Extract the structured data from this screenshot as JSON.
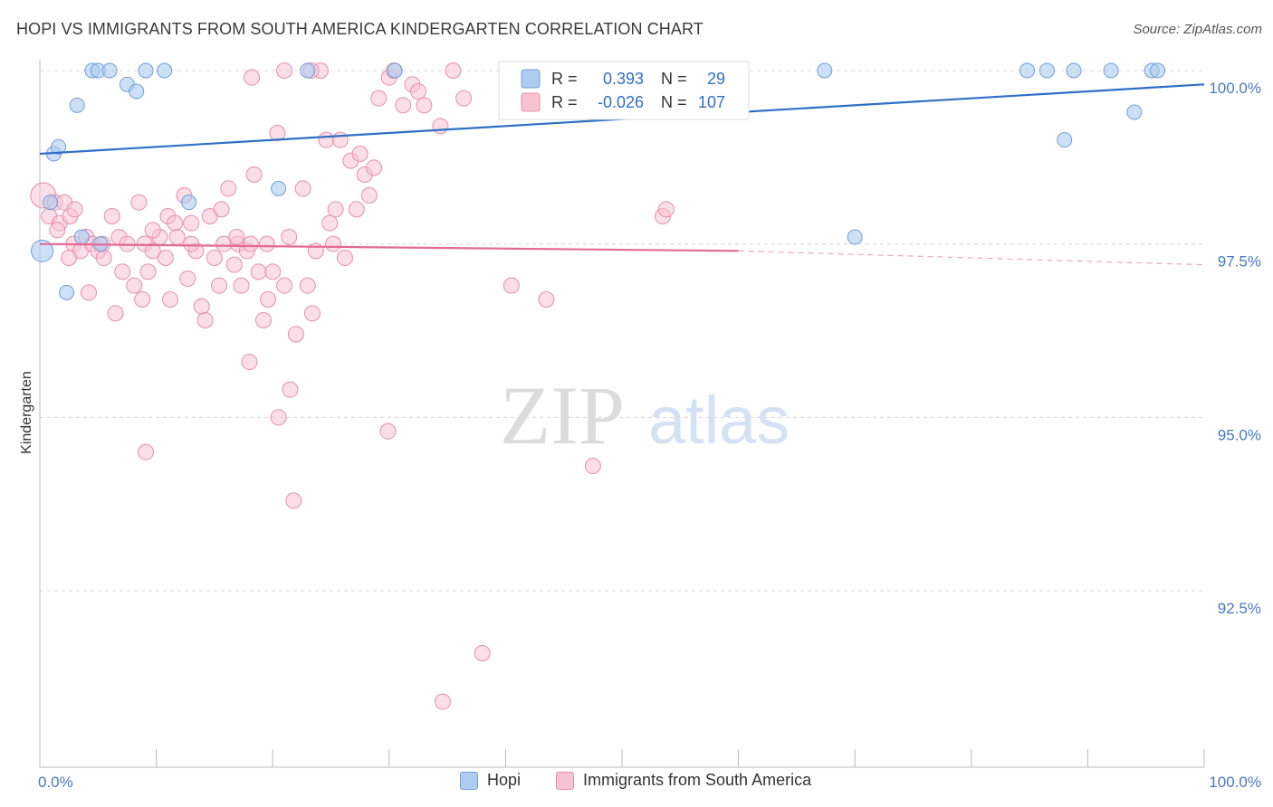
{
  "title": "HOPI VS IMMIGRANTS FROM SOUTH AMERICA KINDERGARTEN CORRELATION CHART",
  "source": "Source: ZipAtlas.com",
  "watermark": {
    "zip": "ZIP",
    "atlas": "atlas"
  },
  "colors": {
    "hopi_fill": "#aecbf0",
    "hopi_stroke": "#6f9fd8",
    "hopi_line": "#2f6fc6",
    "sa_fill": "#f7c3d3",
    "sa_stroke": "#e590ad",
    "sa_line": "#e26a93",
    "grid": "#d8d8d8",
    "axis_text": "#4a78c2"
  },
  "legend": {
    "hopi": {
      "r_label": "R =",
      "r_value": "0.393",
      "n_label": "N =",
      "n_value": "29"
    },
    "sa": {
      "r_label": "R =",
      "r_value": "-0.026",
      "n_label": "N =",
      "n_value": "107"
    }
  },
  "chart_data": {
    "type": "scatter",
    "title": "HOPI VS IMMIGRANTS FROM SOUTH AMERICA KINDERGARTEN CORRELATION CHART",
    "xlabel": "",
    "ylabel": "Kindergarten",
    "xlim": [
      0,
      100
    ],
    "ylim": [
      90.5,
      100.4
    ],
    "x_tick_labels": [
      "0.0%",
      "100.0%"
    ],
    "y_ticks": [
      92.5,
      95.0,
      97.5,
      100.0
    ],
    "y_tick_labels": [
      "92.5%",
      "95.0%",
      "97.5%",
      "100.0%"
    ],
    "grid": "horizontal dashed",
    "legend_position": "top-center",
    "series": [
      {
        "name": "Hopi",
        "trend": {
          "x": [
            0,
            100
          ],
          "y": [
            98.8,
            99.8
          ]
        },
        "points": [
          [
            0.2,
            97.4
          ],
          [
            1.2,
            98.8
          ],
          [
            1.6,
            98.9
          ],
          [
            0.9,
            98.1
          ],
          [
            3.2,
            99.5
          ],
          [
            4.5,
            100.0
          ],
          [
            5.0,
            100.0
          ],
          [
            6.0,
            100.0
          ],
          [
            7.5,
            99.8
          ],
          [
            8.3,
            99.7
          ],
          [
            9.1,
            100.0
          ],
          [
            10.7,
            100.0
          ],
          [
            2.3,
            96.8
          ],
          [
            5.2,
            97.5
          ],
          [
            3.6,
            97.6
          ],
          [
            12.8,
            98.1
          ],
          [
            20.5,
            98.3
          ],
          [
            23.0,
            100.0
          ],
          [
            30.5,
            100.0
          ],
          [
            67.4,
            100.0
          ],
          [
            70.0,
            97.6
          ],
          [
            84.8,
            100.0
          ],
          [
            86.5,
            100.0
          ],
          [
            88.8,
            100.0
          ],
          [
            92.0,
            100.0
          ],
          [
            95.5,
            100.0
          ],
          [
            96.0,
            100.0
          ],
          [
            88.0,
            99.0
          ],
          [
            94.0,
            99.4
          ]
        ]
      },
      {
        "name": "Immigrants from South America",
        "trend": {
          "x": [
            0,
            60
          ],
          "y": [
            97.5,
            97.4
          ]
        },
        "trend_dashed": {
          "x": [
            60,
            100
          ],
          "y": [
            97.4,
            97.2
          ]
        },
        "points": [
          [
            0.3,
            98.2
          ],
          [
            0.8,
            97.9
          ],
          [
            1.3,
            98.1
          ],
          [
            1.7,
            97.8
          ],
          [
            2.1,
            98.1
          ],
          [
            2.6,
            97.9
          ],
          [
            3.0,
            98.0
          ],
          [
            1.5,
            97.7
          ],
          [
            2.9,
            97.5
          ],
          [
            3.5,
            97.4
          ],
          [
            4.0,
            97.6
          ],
          [
            4.5,
            97.5
          ],
          [
            5.0,
            97.4
          ],
          [
            5.5,
            97.3
          ],
          [
            4.2,
            96.8
          ],
          [
            5.4,
            97.5
          ],
          [
            6.2,
            97.9
          ],
          [
            6.8,
            97.6
          ],
          [
            7.1,
            97.1
          ],
          [
            7.5,
            97.5
          ],
          [
            8.1,
            96.9
          ],
          [
            8.5,
            98.1
          ],
          [
            8.8,
            96.7
          ],
          [
            9.0,
            97.5
          ],
          [
            9.3,
            97.1
          ],
          [
            9.7,
            97.4
          ],
          [
            10.3,
            97.6
          ],
          [
            10.8,
            97.3
          ],
          [
            11.0,
            97.9
          ],
          [
            11.6,
            97.8
          ],
          [
            11.2,
            96.7
          ],
          [
            11.8,
            97.6
          ],
          [
            12.4,
            98.2
          ],
          [
            12.7,
            97.0
          ],
          [
            13.0,
            97.8
          ],
          [
            13.4,
            97.4
          ],
          [
            13.9,
            96.6
          ],
          [
            14.2,
            96.4
          ],
          [
            14.6,
            97.9
          ],
          [
            15.0,
            97.3
          ],
          [
            15.4,
            96.9
          ],
          [
            15.8,
            97.5
          ],
          [
            16.2,
            98.3
          ],
          [
            16.7,
            97.2
          ],
          [
            17.0,
            97.5
          ],
          [
            17.3,
            96.9
          ],
          [
            17.8,
            97.4
          ],
          [
            18.1,
            97.5
          ],
          [
            18.4,
            98.5
          ],
          [
            18.8,
            97.1
          ],
          [
            19.2,
            96.4
          ],
          [
            19.6,
            96.7
          ],
          [
            20.0,
            97.1
          ],
          [
            20.4,
            99.1
          ],
          [
            21.0,
            96.9
          ],
          [
            21.4,
            97.6
          ],
          [
            22.0,
            96.2
          ],
          [
            22.6,
            98.3
          ],
          [
            23.0,
            96.9
          ],
          [
            23.4,
            96.5
          ],
          [
            23.7,
            97.4
          ],
          [
            24.1,
            100.0
          ],
          [
            24.6,
            99.0
          ],
          [
            24.9,
            97.8
          ],
          [
            25.2,
            97.5
          ],
          [
            25.8,
            99.0
          ],
          [
            26.2,
            97.3
          ],
          [
            26.7,
            98.7
          ],
          [
            27.2,
            98.0
          ],
          [
            27.5,
            98.8
          ],
          [
            27.9,
            98.5
          ],
          [
            28.3,
            98.2
          ],
          [
            28.7,
            98.6
          ],
          [
            29.1,
            99.6
          ],
          [
            30.0,
            99.9
          ],
          [
            30.4,
            100.0
          ],
          [
            31.2,
            99.5
          ],
          [
            32.0,
            99.8
          ],
          [
            32.5,
            99.7
          ],
          [
            33.0,
            99.5
          ],
          [
            34.4,
            99.2
          ],
          [
            35.5,
            100.0
          ],
          [
            36.4,
            99.6
          ],
          [
            18.0,
            95.8
          ],
          [
            21.5,
            95.4
          ],
          [
            20.5,
            95.0
          ],
          [
            21.8,
            93.8
          ],
          [
            29.9,
            94.8
          ],
          [
            9.1,
            94.5
          ],
          [
            38.0,
            91.6
          ],
          [
            34.6,
            90.9
          ],
          [
            40.5,
            96.9
          ],
          [
            43.5,
            96.7
          ],
          [
            47.5,
            94.3
          ],
          [
            53.5,
            97.9
          ],
          [
            53.8,
            98.0
          ],
          [
            18.2,
            99.9
          ],
          [
            21.0,
            100.0
          ],
          [
            23.3,
            100.0
          ],
          [
            25.4,
            98.0
          ],
          [
            13.0,
            97.5
          ],
          [
            9.7,
            97.7
          ],
          [
            19.5,
            97.5
          ],
          [
            6.5,
            96.5
          ],
          [
            16.9,
            97.6
          ],
          [
            15.6,
            98.0
          ],
          [
            2.5,
            97.3
          ]
        ]
      }
    ]
  },
  "bottom_legend": {
    "hopi": "Hopi",
    "sa": "Immigrants from South America"
  }
}
